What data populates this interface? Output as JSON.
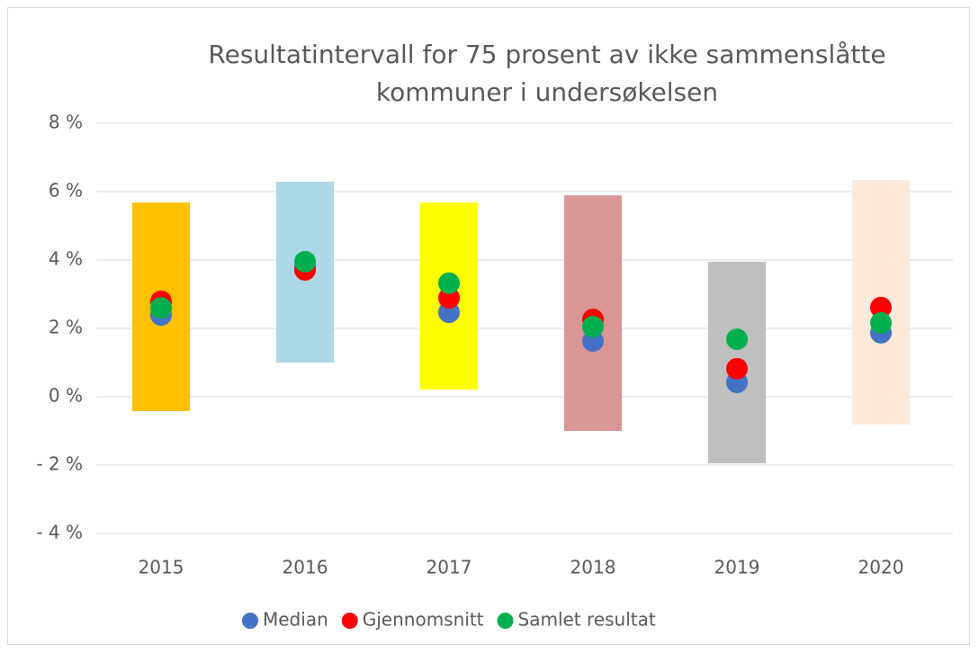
{
  "chart_data": {
    "type": "range",
    "title": "Resultatintervall for 75 prosent av ikke sammenslåtte kommuner i undersøkelsen",
    "categories": [
      "2015",
      "2016",
      "2017",
      "2018",
      "2019",
      "2020"
    ],
    "ranges": {
      "low": [
        -0.42,
        1.0,
        0.21,
        -1.0,
        -1.95,
        -0.82
      ],
      "high": [
        5.68,
        6.29,
        5.68,
        5.89,
        3.95,
        6.34
      ],
      "colors": [
        "#FFC000",
        "#ADD8E6",
        "#FFFF00",
        "#D99694",
        "#BFBFBF",
        "#FDE9D9"
      ]
    },
    "series": [
      {
        "name": "Median",
        "color": "#4472C4",
        "values": [
          2.39,
          3.8,
          2.47,
          1.63,
          0.42,
          1.87
        ]
      },
      {
        "name": "Gjennomsnitt",
        "color": "#FF0000",
        "values": [
          2.79,
          3.71,
          2.89,
          2.26,
          0.82,
          2.61
        ]
      },
      {
        "name": "Samlet resultat",
        "color": "#00B050",
        "values": [
          2.6,
          3.95,
          3.32,
          2.05,
          1.68,
          2.16
        ]
      }
    ],
    "ylim": [
      -4,
      8
    ],
    "yticks": [
      {
        "value": -4,
        "label": "- 4 %"
      },
      {
        "value": -2,
        "label": "- 2 %"
      },
      {
        "value": 0,
        "label": "0 %"
      },
      {
        "value": 2,
        "label": "2 %"
      },
      {
        "value": 4,
        "label": "4 %"
      },
      {
        "value": 6,
        "label": "6 %"
      },
      {
        "value": 8,
        "label": "8 %"
      }
    ],
    "grid": true,
    "legend": "bottom"
  }
}
